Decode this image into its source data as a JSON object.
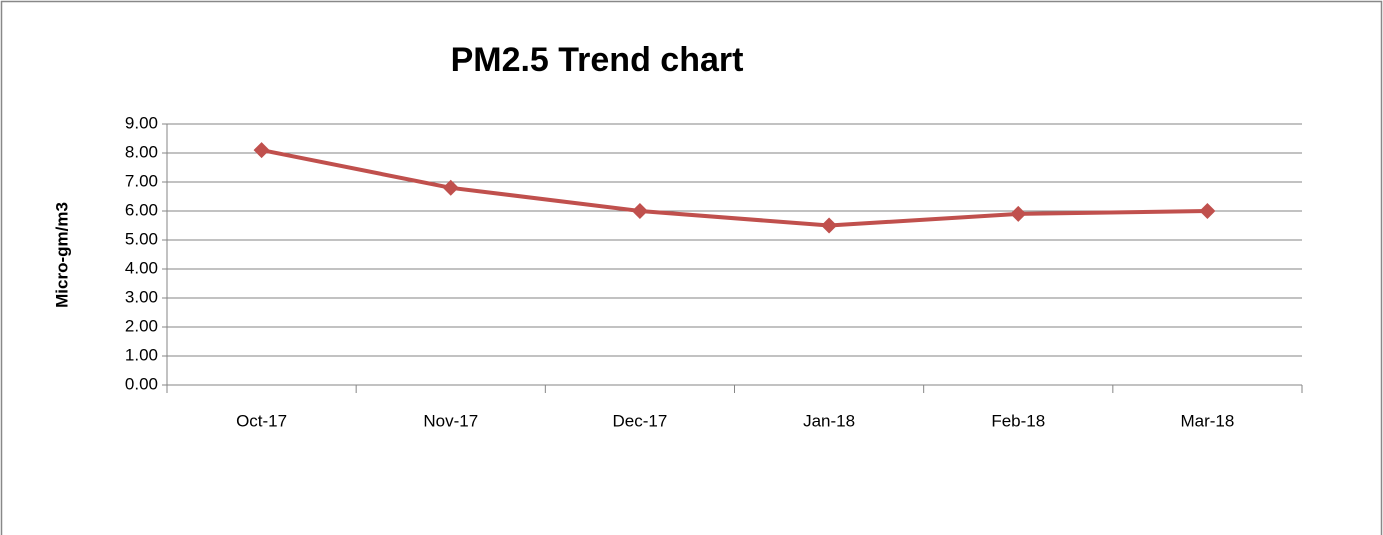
{
  "chart_data": {
    "type": "line",
    "title": "PM2.5 Trend chart",
    "y_label": "Micro-gm/m3",
    "categories": [
      "Oct-17",
      "Nov-17",
      "Dec-17",
      "Jan-18",
      "Feb-18",
      "Mar-18"
    ],
    "series": [
      {
        "name": "PM2.5",
        "color": "#c0504d",
        "values": [
          8.1,
          6.8,
          6.0,
          5.5,
          5.9,
          6.0
        ]
      }
    ],
    "ylim": [
      0,
      9
    ],
    "yticks": [
      {
        "value": 0,
        "label": "0.00"
      },
      {
        "value": 1,
        "label": "1.00"
      },
      {
        "value": 2,
        "label": "2.00"
      },
      {
        "value": 3,
        "label": "3.00"
      },
      {
        "value": 4,
        "label": "4.00"
      },
      {
        "value": 5,
        "label": "5.00"
      },
      {
        "value": 6,
        "label": "6.00"
      },
      {
        "value": 7,
        "label": "7.00"
      },
      {
        "value": 8,
        "label": "8.00"
      },
      {
        "value": 9,
        "label": "9.00"
      }
    ],
    "grid": true
  }
}
